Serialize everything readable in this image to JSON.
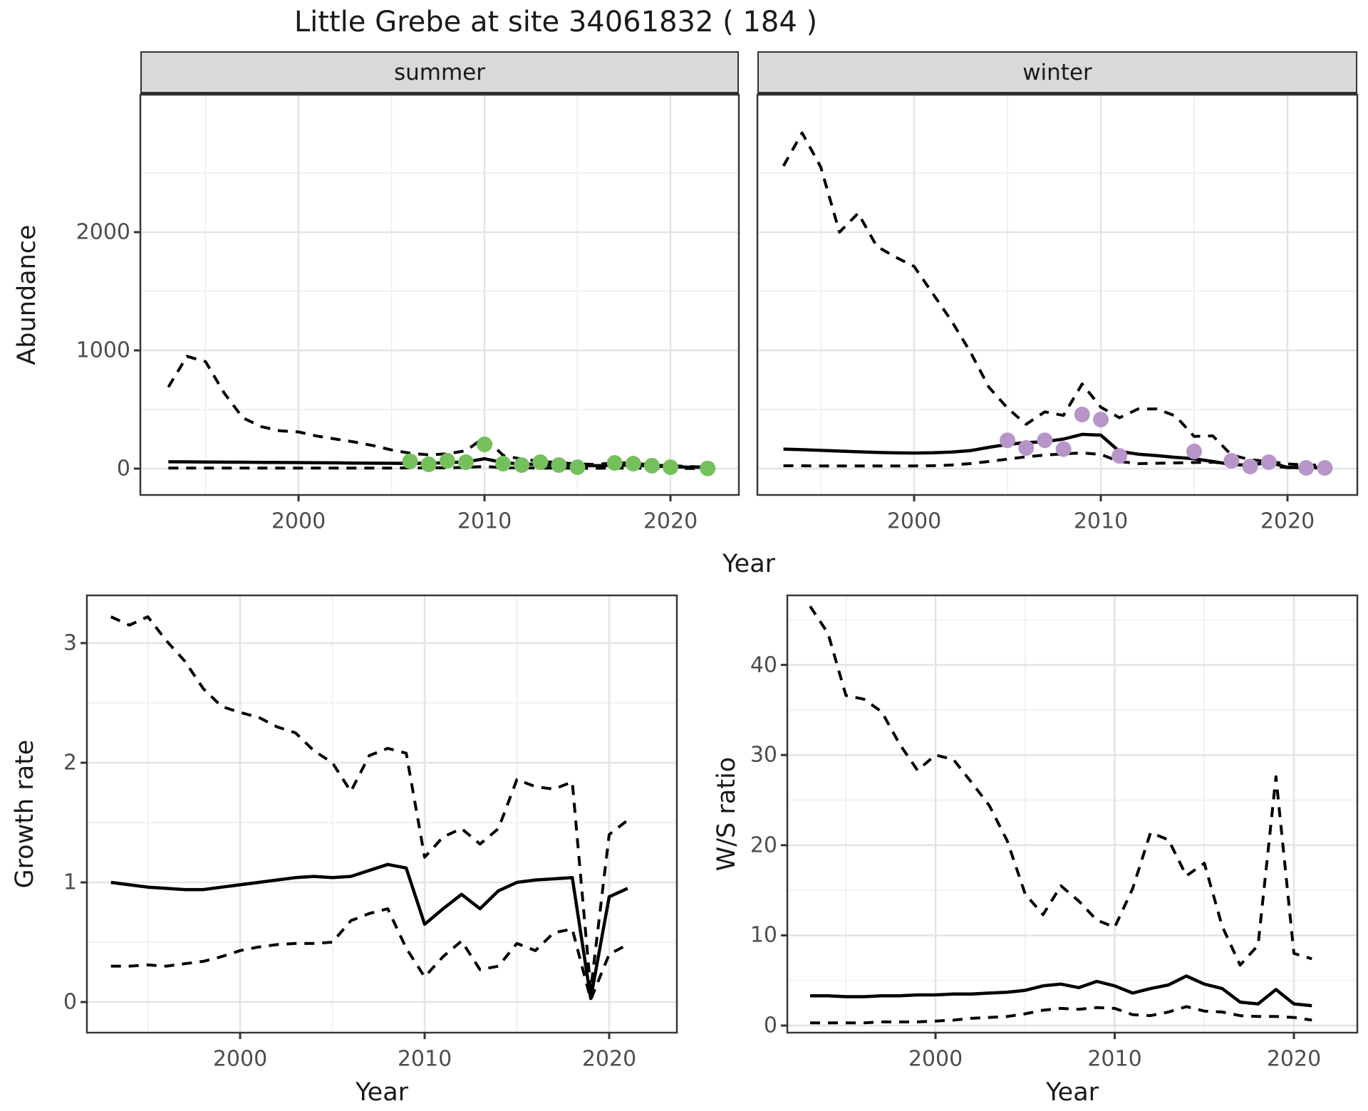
{
  "title": "Little Grebe at site 34061832 ( 184 )",
  "colors": {
    "summer_points": "#75c05c",
    "winter_points": "#b795c8",
    "line": "#000000",
    "strip_background": "#d9d9d9",
    "tick_text": "#4d4d4d"
  },
  "facets": {
    "summer": "summer",
    "winter": "winter"
  },
  "axis_titles": {
    "abundance": "Abundance",
    "growth_rate": "Growth rate",
    "ws_ratio": "W/S ratio",
    "year_top": "Year",
    "year_bottom_left": "Year",
    "year_bottom_right": "Year"
  },
  "chart_data": [
    {
      "id": "abundance-summer",
      "type": "line",
      "facet_label": "summer",
      "xlabel": "Year",
      "ylabel": "Abundance",
      "xlim": [
        1991.5,
        2023.5
      ],
      "ylim": [
        -220,
        3160
      ],
      "xticks": [
        2000,
        2010,
        2020
      ],
      "xtick_labels": [
        "2000",
        "2010",
        "2020"
      ],
      "xticks_minor": [
        1995,
        2005,
        2015
      ],
      "yticks": [
        0,
        1000,
        2000
      ],
      "ytick_labels": [
        "0",
        "1000",
        "2000"
      ],
      "yticks_minor": [
        500,
        1500,
        2500
      ],
      "grid": true,
      "years": [
        1993,
        1994,
        1995,
        1996,
        1997,
        1998,
        1999,
        2000,
        2001,
        2002,
        2003,
        2004,
        2005,
        2006,
        2007,
        2008,
        2009,
        2010,
        2011,
        2012,
        2013,
        2014,
        2015,
        2016,
        2017,
        2018,
        2019,
        2020,
        2021,
        2022
      ],
      "series": [
        {
          "name": "fitted-median",
          "style": "solid",
          "values": [
            58,
            57,
            56,
            55,
            54,
            53,
            52,
            51,
            50,
            49,
            47,
            46,
            45,
            44,
            46,
            50,
            56,
            84,
            50,
            40,
            34,
            30,
            26,
            25,
            28,
            30,
            22,
            16,
            12,
            10
          ]
        },
        {
          "name": "upper-credible-interval",
          "style": "dashed",
          "values": [
            690,
            950,
            905,
            640,
            430,
            355,
            320,
            310,
            275,
            250,
            225,
            195,
            158,
            130,
            116,
            125,
            152,
            265,
            112,
            80,
            62,
            50,
            40,
            35,
            50,
            46,
            30,
            25,
            18,
            12
          ]
        },
        {
          "name": "lower-credible-interval",
          "style": "dashed",
          "values": [
            5,
            5,
            5,
            5,
            4,
            4,
            4,
            4,
            4,
            4,
            4,
            4,
            4,
            6,
            6,
            8,
            10,
            18,
            8,
            6,
            5,
            4,
            3,
            3,
            4,
            4,
            3,
            2,
            1,
            1
          ]
        }
      ],
      "points": {
        "name": "observed-count-summer",
        "color": "#75c05c",
        "x": [
          2006,
          2007,
          2008,
          2009,
          2010,
          2011,
          2012,
          2013,
          2014,
          2015,
          2017,
          2018,
          2019,
          2020,
          2022
        ],
        "y": [
          62,
          36,
          66,
          54,
          205,
          42,
          30,
          54,
          30,
          12,
          48,
          42,
          25,
          12,
          2
        ]
      }
    },
    {
      "id": "abundance-winter",
      "type": "line",
      "facet_label": "winter",
      "xlabel": "Year",
      "ylabel": "Abundance",
      "xlim": [
        1991.6,
        2023.7
      ],
      "ylim": [
        -220,
        3160
      ],
      "xticks": [
        2000,
        2010,
        2020
      ],
      "xtick_labels": [
        "2000",
        "2010",
        "2020"
      ],
      "xticks_minor": [
        1995,
        2005,
        2015
      ],
      "yticks": [
        0,
        1000,
        2000
      ],
      "ytick_labels": [
        "0",
        "1000",
        "2000"
      ],
      "yticks_minor": [
        500,
        1500,
        2500
      ],
      "grid": true,
      "years": [
        1993,
        1994,
        1995,
        1996,
        1997,
        1998,
        1999,
        2000,
        2001,
        2002,
        2003,
        2004,
        2005,
        2006,
        2007,
        2008,
        2009,
        2010,
        2011,
        2012,
        2013,
        2014,
        2015,
        2016,
        2017,
        2018,
        2019,
        2020,
        2021,
        2022
      ],
      "series": [
        {
          "name": "fitted-median",
          "style": "solid",
          "values": [
            165,
            160,
            154,
            148,
            142,
            137,
            133,
            132,
            134,
            140,
            152,
            180,
            205,
            220,
            228,
            250,
            290,
            283,
            145,
            122,
            110,
            95,
            84,
            60,
            35,
            28,
            55,
            10,
            8,
            12
          ]
        },
        {
          "name": "upper-credible-interval",
          "style": "dashed",
          "values": [
            2560,
            2840,
            2550,
            2000,
            2160,
            1880,
            1790,
            1710,
            1480,
            1250,
            990,
            690,
            512,
            375,
            480,
            450,
            716,
            520,
            430,
            505,
            505,
            445,
            272,
            277,
            115,
            75,
            60,
            40,
            30,
            30
          ]
        },
        {
          "name": "lower-credible-interval",
          "style": "dashed",
          "values": [
            24,
            24,
            23,
            22,
            22,
            22,
            22,
            23,
            25,
            30,
            42,
            60,
            80,
            100,
            115,
            125,
            133,
            120,
            60,
            42,
            45,
            48,
            52,
            54,
            40,
            30,
            25,
            8,
            5,
            5
          ]
        }
      ],
      "points": {
        "name": "observed-count-winter",
        "color": "#b795c8",
        "x": [
          2005,
          2006,
          2007,
          2008,
          2009,
          2010,
          2011,
          2015,
          2017,
          2018,
          2019,
          2021,
          2022
        ],
        "y": [
          240,
          175,
          240,
          165,
          458,
          415,
          108,
          145,
          66,
          18,
          54,
          6,
          6
        ]
      }
    },
    {
      "id": "growth-rate",
      "type": "line",
      "xlabel": "Year",
      "ylabel": "Growth rate",
      "xlim": [
        1991.7,
        2023.7
      ],
      "ylim": [
        -0.26,
        3.4
      ],
      "xticks": [
        2000,
        2010,
        2020
      ],
      "xtick_labels": [
        "2000",
        "2010",
        "2020"
      ],
      "xticks_minor": [
        1995,
        2005,
        2015
      ],
      "yticks": [
        0,
        1,
        2,
        3
      ],
      "ytick_labels": [
        "0",
        "1",
        "2",
        "3"
      ],
      "yticks_minor": [
        0.5,
        1.5,
        2.5
      ],
      "grid": true,
      "years": [
        1993,
        1994,
        1995,
        1996,
        1997,
        1998,
        1999,
        2000,
        2001,
        2002,
        2003,
        2004,
        2005,
        2006,
        2007,
        2008,
        2009,
        2010,
        2011,
        2012,
        2013,
        2014,
        2015,
        2016,
        2017,
        2018,
        2019,
        2020,
        2021
      ],
      "series": [
        {
          "name": "growth-rate-median",
          "style": "solid",
          "values": [
            1.0,
            0.98,
            0.96,
            0.95,
            0.94,
            0.94,
            0.96,
            0.98,
            1.0,
            1.02,
            1.04,
            1.05,
            1.04,
            1.05,
            1.1,
            1.15,
            1.12,
            0.65,
            0.78,
            0.9,
            0.78,
            0.93,
            1.0,
            1.02,
            1.03,
            1.04,
            0.03,
            0.88,
            0.95
          ]
        },
        {
          "name": "growth-rate-upper",
          "style": "dashed",
          "values": [
            3.22,
            3.15,
            3.22,
            3.02,
            2.85,
            2.62,
            2.47,
            2.42,
            2.38,
            2.3,
            2.25,
            2.1,
            2.0,
            1.76,
            2.06,
            2.12,
            2.08,
            1.21,
            1.38,
            1.45,
            1.32,
            1.45,
            1.86,
            1.8,
            1.78,
            1.84,
            0.1,
            1.4,
            1.52
          ]
        },
        {
          "name": "growth-rate-lower",
          "style": "dashed",
          "values": [
            0.3,
            0.3,
            0.31,
            0.3,
            0.32,
            0.34,
            0.38,
            0.43,
            0.46,
            0.48,
            0.49,
            0.49,
            0.5,
            0.68,
            0.74,
            0.78,
            0.45,
            0.21,
            0.38,
            0.51,
            0.27,
            0.3,
            0.49,
            0.43,
            0.58,
            0.61,
            0.02,
            0.4,
            0.48
          ]
        }
      ]
    },
    {
      "id": "ws-ratio",
      "type": "line",
      "xlabel": "Year",
      "ylabel": "W/S ratio",
      "xlim": [
        1991.7,
        2023.5
      ],
      "ylim": [
        -0.8,
        47.7
      ],
      "xticks": [
        2000,
        2010,
        2020
      ],
      "xtick_labels": [
        "2000",
        "2010",
        "2020"
      ],
      "xticks_minor": [
        1995,
        2005,
        2015
      ],
      "yticks": [
        0,
        10,
        20,
        30,
        40
      ],
      "ytick_labels": [
        "0",
        "10",
        "20",
        "30",
        "40"
      ],
      "yticks_minor": [
        5,
        15,
        25,
        35,
        45
      ],
      "grid": true,
      "years": [
        1993,
        1994,
        1995,
        1996,
        1997,
        1998,
        1999,
        2000,
        2001,
        2002,
        2003,
        2004,
        2005,
        2006,
        2007,
        2008,
        2009,
        2010,
        2011,
        2012,
        2013,
        2014,
        2015,
        2016,
        2017,
        2018,
        2019,
        2020,
        2021
      ],
      "series": [
        {
          "name": "ws-ratio-median",
          "style": "solid",
          "values": [
            3.3,
            3.3,
            3.2,
            3.2,
            3.3,
            3.3,
            3.4,
            3.4,
            3.5,
            3.5,
            3.6,
            3.7,
            3.9,
            4.4,
            4.6,
            4.2,
            4.9,
            4.4,
            3.6,
            4.1,
            4.5,
            5.5,
            4.6,
            4.1,
            2.6,
            2.4,
            4.0,
            2.4,
            2.2
          ]
        },
        {
          "name": "ws-ratio-upper",
          "style": "dashed",
          "values": [
            46.5,
            43.5,
            36.6,
            36.2,
            34.8,
            31.2,
            28.3,
            30.0,
            29.5,
            27.0,
            24.4,
            20.5,
            14.6,
            12.3,
            15.5,
            13.8,
            11.7,
            10.9,
            15.2,
            21.4,
            20.6,
            16.6,
            18.0,
            11.0,
            6.7,
            8.9,
            27.6,
            8.0,
            7.4
          ]
        },
        {
          "name": "ws-ratio-lower",
          "style": "dashed",
          "values": [
            0.3,
            0.3,
            0.3,
            0.3,
            0.4,
            0.4,
            0.4,
            0.5,
            0.6,
            0.8,
            0.9,
            1.0,
            1.3,
            1.7,
            1.9,
            1.8,
            2.0,
            1.9,
            1.2,
            1.1,
            1.5,
            2.1,
            1.6,
            1.5,
            1.1,
            1.0,
            1.0,
            0.9,
            0.6
          ]
        }
      ]
    }
  ]
}
